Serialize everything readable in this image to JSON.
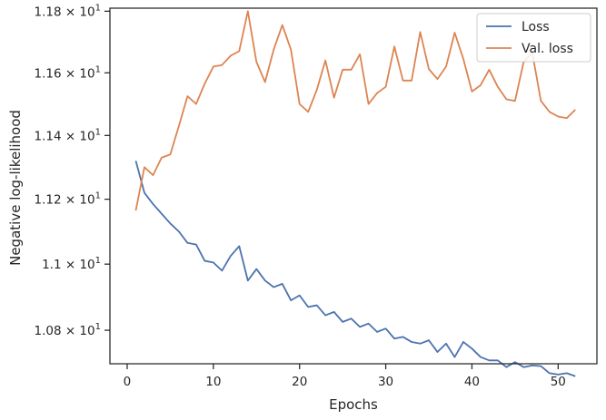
{
  "chart_data": {
    "type": "line",
    "title": "",
    "xlabel": "Epochs",
    "ylabel": "Negative log-likelihood",
    "yscale": "log",
    "grid": false,
    "legend_position": "top-right",
    "xlim": [
      -2,
      54.5
    ],
    "ylim": [
      10.7,
      11.81
    ],
    "x_ticks": [
      0,
      10,
      20,
      30,
      40,
      50
    ],
    "x_tick_labels": [
      "0",
      "10",
      "20",
      "30",
      "40",
      "50"
    ],
    "y_ticks": [
      10.8,
      11.0,
      11.2,
      11.4,
      11.6,
      11.8
    ],
    "y_tick_labels": [
      {
        "mantissa": "1.08",
        "exp": "1"
      },
      {
        "mantissa": "1.1",
        "exp": "1"
      },
      {
        "mantissa": "1.12",
        "exp": "1"
      },
      {
        "mantissa": "1.14",
        "exp": "1"
      },
      {
        "mantissa": "1.16",
        "exp": "1"
      },
      {
        "mantissa": "1.18",
        "exp": "1"
      }
    ],
    "tick_label_times": "×",
    "tick_label_base": "10",
    "x": [
      1,
      2,
      3,
      4,
      5,
      6,
      7,
      8,
      9,
      10,
      11,
      12,
      13,
      14,
      15,
      16,
      17,
      18,
      19,
      20,
      21,
      22,
      23,
      24,
      25,
      26,
      27,
      28,
      29,
      30,
      31,
      32,
      33,
      34,
      35,
      36,
      37,
      38,
      39,
      40,
      41,
      42,
      43,
      44,
      45,
      46,
      47,
      48,
      49,
      50,
      51,
      52
    ],
    "series": [
      {
        "name": "Loss",
        "color": "#4c72b0",
        "values": [
          11.32,
          11.22,
          11.185,
          11.155,
          11.125,
          11.1,
          11.065,
          11.06,
          11.01,
          11.005,
          10.98,
          11.025,
          11.055,
          10.95,
          10.985,
          10.95,
          10.93,
          10.94,
          10.89,
          10.905,
          10.87,
          10.875,
          10.845,
          10.855,
          10.825,
          10.835,
          10.81,
          10.82,
          10.795,
          10.805,
          10.775,
          10.78,
          10.765,
          10.76,
          10.77,
          10.735,
          10.76,
          10.72,
          10.765,
          10.745,
          10.72,
          10.71,
          10.71,
          10.69,
          10.705,
          10.69,
          10.695,
          10.693,
          10.672,
          10.668,
          10.672,
          10.663
        ]
      },
      {
        "name": "Val. loss",
        "color": "#dd8452",
        "values": [
          11.165,
          11.3,
          11.275,
          11.33,
          11.34,
          11.43,
          11.525,
          11.5,
          11.565,
          11.62,
          11.625,
          11.655,
          11.67,
          11.8,
          11.635,
          11.57,
          11.675,
          11.755,
          11.675,
          11.5,
          11.475,
          11.545,
          11.64,
          11.52,
          11.61,
          11.61,
          11.66,
          11.5,
          11.535,
          11.555,
          11.685,
          11.575,
          11.575,
          11.732,
          11.612,
          11.58,
          11.62,
          11.73,
          11.645,
          11.54,
          11.56,
          11.61,
          11.555,
          11.515,
          11.51,
          11.635,
          11.665,
          11.51,
          11.475,
          11.46,
          11.455,
          11.482
        ]
      }
    ]
  }
}
